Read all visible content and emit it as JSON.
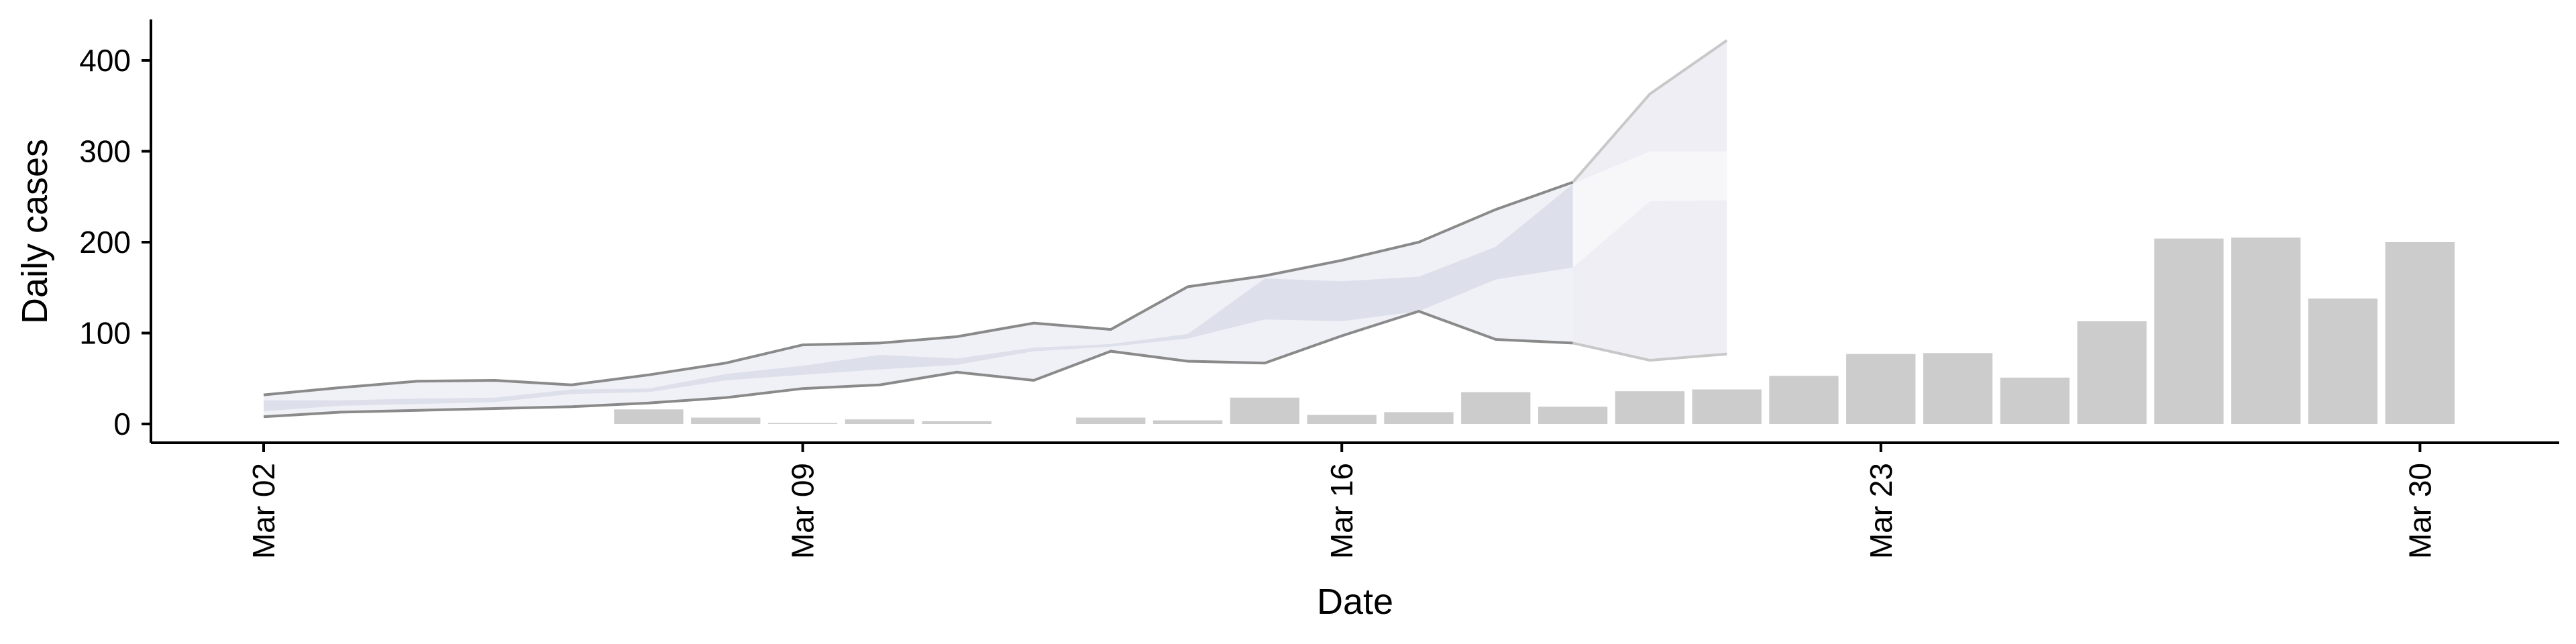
{
  "chart_data": {
    "type": "bar",
    "title": "",
    "xlabel": "Date",
    "ylabel": "Daily cases",
    "ylim": [
      -20,
      445
    ],
    "yticks": [
      0,
      100,
      200,
      300,
      400
    ],
    "xticks": [
      {
        "date": "2020-03-02",
        "label": "Mar 02"
      },
      {
        "date": "2020-03-09",
        "label": "Mar 09"
      },
      {
        "date": "2020-03-16",
        "label": "Mar 16"
      },
      {
        "date": "2020-03-23",
        "label": "Mar 23"
      },
      {
        "date": "2020-03-30",
        "label": "Mar 30"
      }
    ],
    "grid": false,
    "legend": "none",
    "colors": {
      "bars": "#cccccc",
      "outer_band": "#f0f1f7",
      "inner_band": "#dde0ea",
      "forecast_outer_band": "#eeeef4",
      "forecast_inner_band": "#f7f7fa",
      "outer_band_edge": "#8a8a8a",
      "forecast_band_edge": "#c8c8c8"
    },
    "observed_cases": {
      "x": [
        "2020-03-02",
        "2020-03-03",
        "2020-03-04",
        "2020-03-05",
        "2020-03-06",
        "2020-03-07",
        "2020-03-08",
        "2020-03-09",
        "2020-03-10",
        "2020-03-11",
        "2020-03-12",
        "2020-03-13",
        "2020-03-14",
        "2020-03-15",
        "2020-03-16",
        "2020-03-17",
        "2020-03-18",
        "2020-03-19",
        "2020-03-20",
        "2020-03-21",
        "2020-03-22",
        "2020-03-23",
        "2020-03-24",
        "2020-03-25",
        "2020-03-26",
        "2020-03-27",
        "2020-03-28",
        "2020-03-29",
        "2020-03-30"
      ],
      "values": [
        0,
        0,
        0,
        0,
        0,
        16,
        7,
        1,
        5,
        3,
        0,
        7,
        4,
        29,
        10,
        13,
        35,
        19,
        36,
        38,
        53,
        77,
        78,
        51,
        113,
        204,
        205,
        138,
        200
      ]
    },
    "outer_interval": {
      "x": [
        "2020-03-02",
        "2020-03-03",
        "2020-03-04",
        "2020-03-05",
        "2020-03-06",
        "2020-03-07",
        "2020-03-08",
        "2020-03-09",
        "2020-03-10",
        "2020-03-11",
        "2020-03-12",
        "2020-03-13",
        "2020-03-14",
        "2020-03-15",
        "2020-03-16",
        "2020-03-17",
        "2020-03-18",
        "2020-03-19",
        "2020-03-20",
        "2020-03-21"
      ],
      "lower": [
        8,
        13,
        15,
        17,
        19,
        23,
        29,
        39,
        43,
        57,
        48,
        80,
        69,
        67,
        97,
        124,
        93,
        89,
        70,
        77
      ],
      "upper": [
        32,
        40,
        47,
        48,
        43,
        54,
        67,
        87,
        89,
        96,
        111,
        104,
        151,
        163,
        180,
        200,
        236,
        266,
        363,
        422
      ]
    },
    "inner_interval": {
      "x": [
        "2020-03-02",
        "2020-03-03",
        "2020-03-04",
        "2020-03-05",
        "2020-03-06",
        "2020-03-07",
        "2020-03-08",
        "2020-03-09",
        "2020-03-10",
        "2020-03-11",
        "2020-03-12",
        "2020-03-13",
        "2020-03-14",
        "2020-03-15",
        "2020-03-16",
        "2020-03-17",
        "2020-03-18",
        "2020-03-19",
        "2020-03-20",
        "2020-03-21"
      ],
      "lower": [
        14,
        20,
        22,
        24,
        33,
        35,
        48,
        54,
        60,
        65,
        80,
        85,
        94,
        115,
        113,
        124,
        159,
        172,
        245,
        246
      ],
      "upper": [
        26,
        26,
        28,
        29,
        38,
        39,
        55,
        64,
        76,
        72,
        84,
        88,
        99,
        160,
        157,
        162,
        195,
        264,
        300,
        300
      ]
    },
    "forecast_start": "2020-03-19"
  }
}
